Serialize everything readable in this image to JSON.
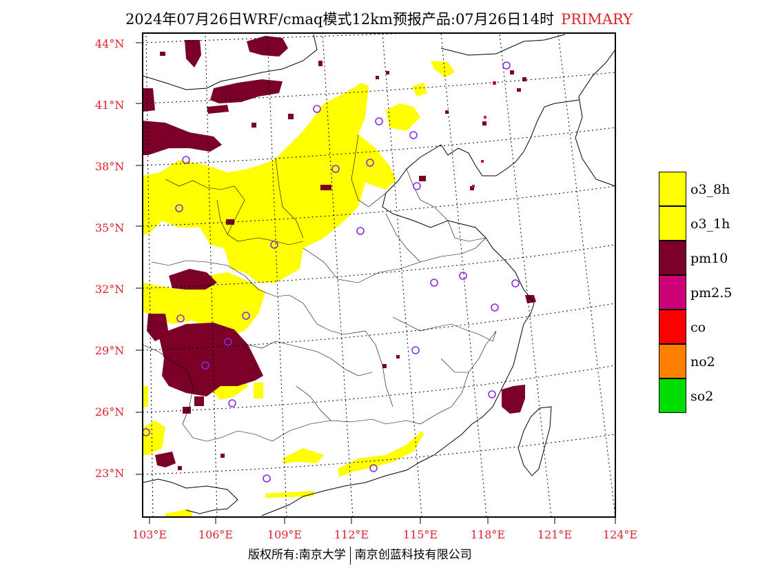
{
  "header": {
    "title": "2024年07月26日WRF/cmaq模式12km预报产品:07月26日14时",
    "tag": "PRIMARY"
  },
  "axes": {
    "lat_labels": [
      "44°N",
      "41°N",
      "38°N",
      "35°N",
      "32°N",
      "29°N",
      "26°N",
      "23°N"
    ],
    "lon_labels": [
      "103°E",
      "106°E",
      "109°E",
      "112°E",
      "115°E",
      "118°E",
      "121°E",
      "124°E"
    ]
  },
  "legend": [
    {
      "label": "o3_8h",
      "color": "#ffff00"
    },
    {
      "label": "o3_1h",
      "color": "#ffff00"
    },
    {
      "label": "pm10",
      "color": "#7a0028"
    },
    {
      "label": "pm2.5",
      "color": "#cc0077"
    },
    {
      "label": "co",
      "color": "#ff0000"
    },
    {
      "label": "no2",
      "color": "#ff7f00"
    },
    {
      "label": "so2",
      "color": "#00dd00"
    }
  ],
  "footer": {
    "left": "版权所有:南京大学",
    "right": "南京创蓝科技有限公司"
  },
  "colors": {
    "o3": "#ffff00",
    "pm10": "#7a0028",
    "pm25": "#cc0077",
    "station_circle": "#8a2be2",
    "label_red": "#e0202a"
  }
}
